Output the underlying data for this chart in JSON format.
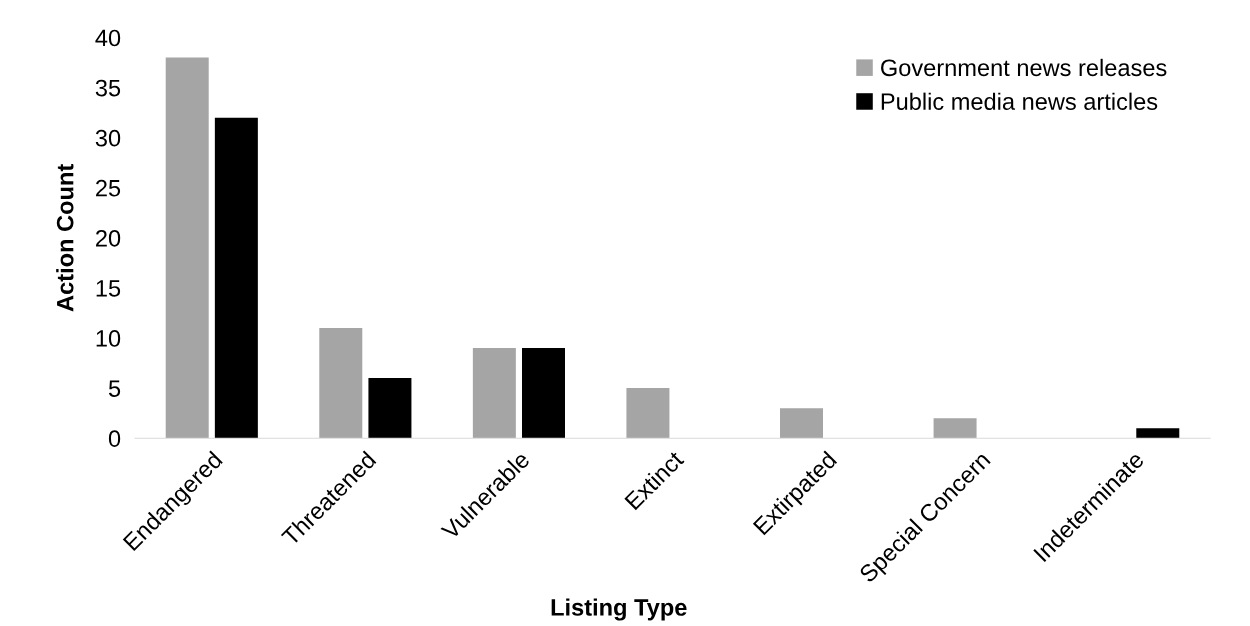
{
  "chart_data": {
    "type": "bar",
    "xlabel": "Listing Type",
    "ylabel": "Action Count",
    "categories": [
      "Endangered",
      "Threatened",
      "Vulnerable",
      "Extinct",
      "Extirpated",
      "Special Concern",
      "Indeterminate"
    ],
    "series": [
      {
        "name": "Government news releases",
        "color": "#a5a5a5",
        "values": [
          38,
          11,
          9,
          5,
          3,
          2,
          0
        ]
      },
      {
        "name": "Public media news articles",
        "color": "#000000",
        "values": [
          32,
          6,
          9,
          0,
          0,
          0,
          1
        ]
      }
    ],
    "ylim": [
      0,
      40
    ],
    "yticks": [
      0,
      5,
      10,
      15,
      20,
      25,
      30,
      35,
      40
    ],
    "grid": false,
    "legend": "top right"
  }
}
